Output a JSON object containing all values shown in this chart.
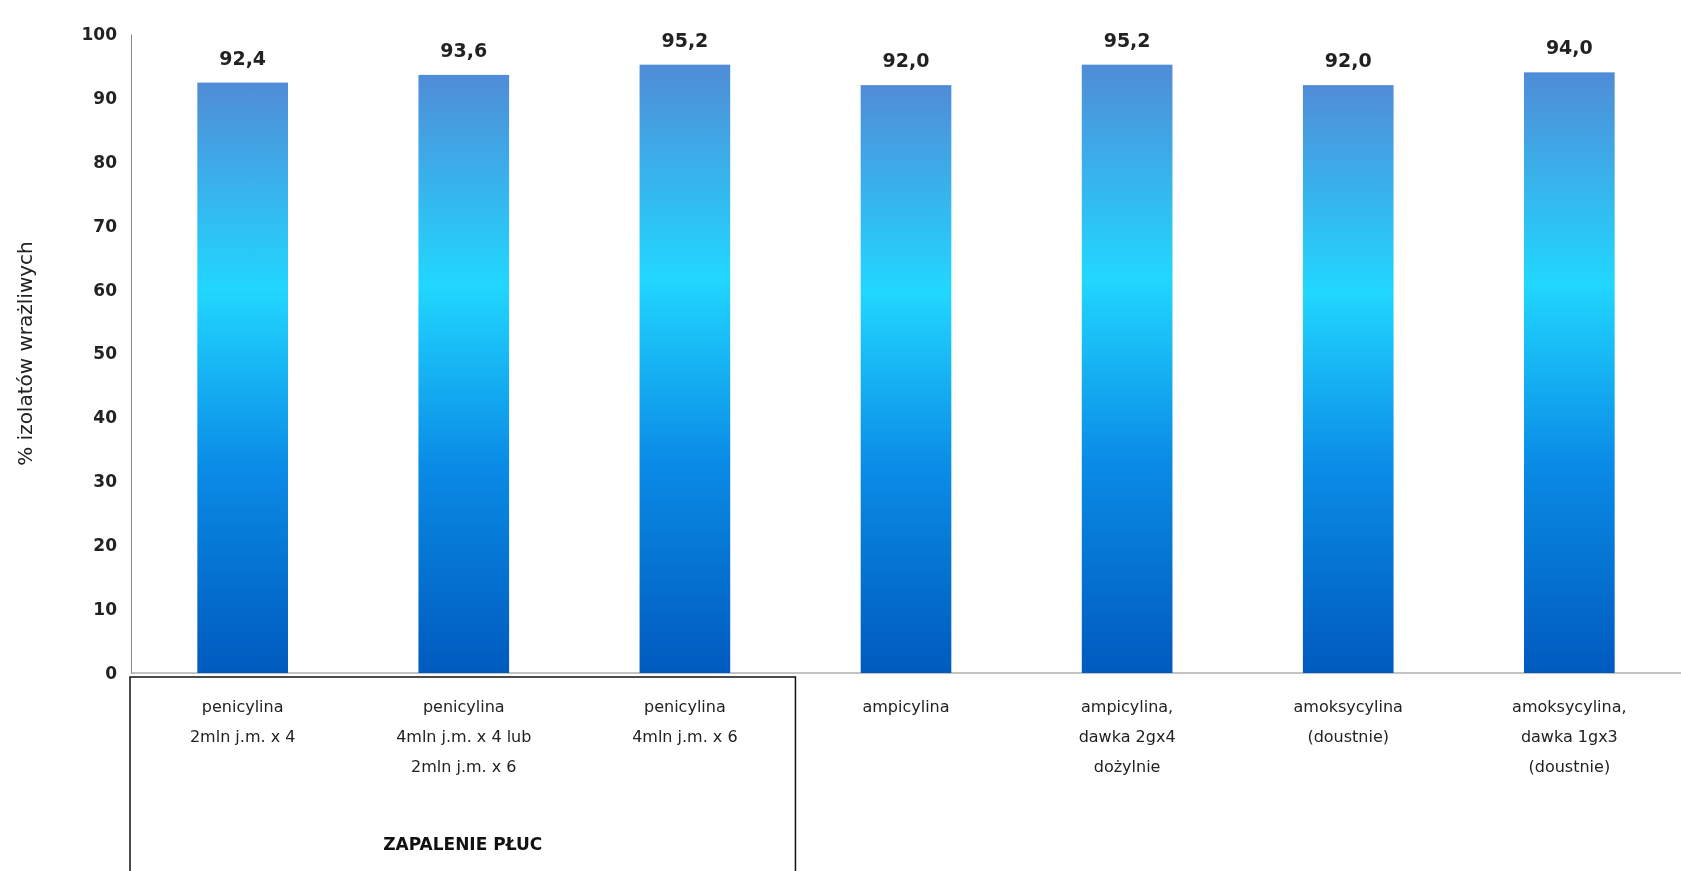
{
  "chart_data": {
    "type": "bar",
    "ylabel": "% izolatów wrażliwych",
    "categories": [
      "penicylina\n2mln j.m. x 4",
      "penicylina\n4mln j.m. x 4  lub\n2mln j.m. x 6",
      "penicylina\n4mln j.m. x 6",
      "ampicylina",
      "ampicylina,\ndawka 2gx4\ndożylnie",
      "amoksycylina\n(doustnie)",
      "amoksycylina,\ndawka 1gx3\n(doustnie)"
    ],
    "values": [
      92.4,
      93.6,
      95.2,
      92.0,
      95.2,
      92.0,
      94.0
    ],
    "value_labels": [
      "92,4",
      "93,6",
      "95,2",
      "92,0",
      "95,2",
      "92,0",
      "94,0"
    ],
    "color": "#1cb4e0",
    "ylim": [
      0,
      100
    ],
    "yticks": [
      0,
      10,
      20,
      30,
      40,
      50,
      60,
      70,
      80,
      90,
      100
    ],
    "annotations": [
      "ZAPALENIE PŁUC"
    ]
  }
}
